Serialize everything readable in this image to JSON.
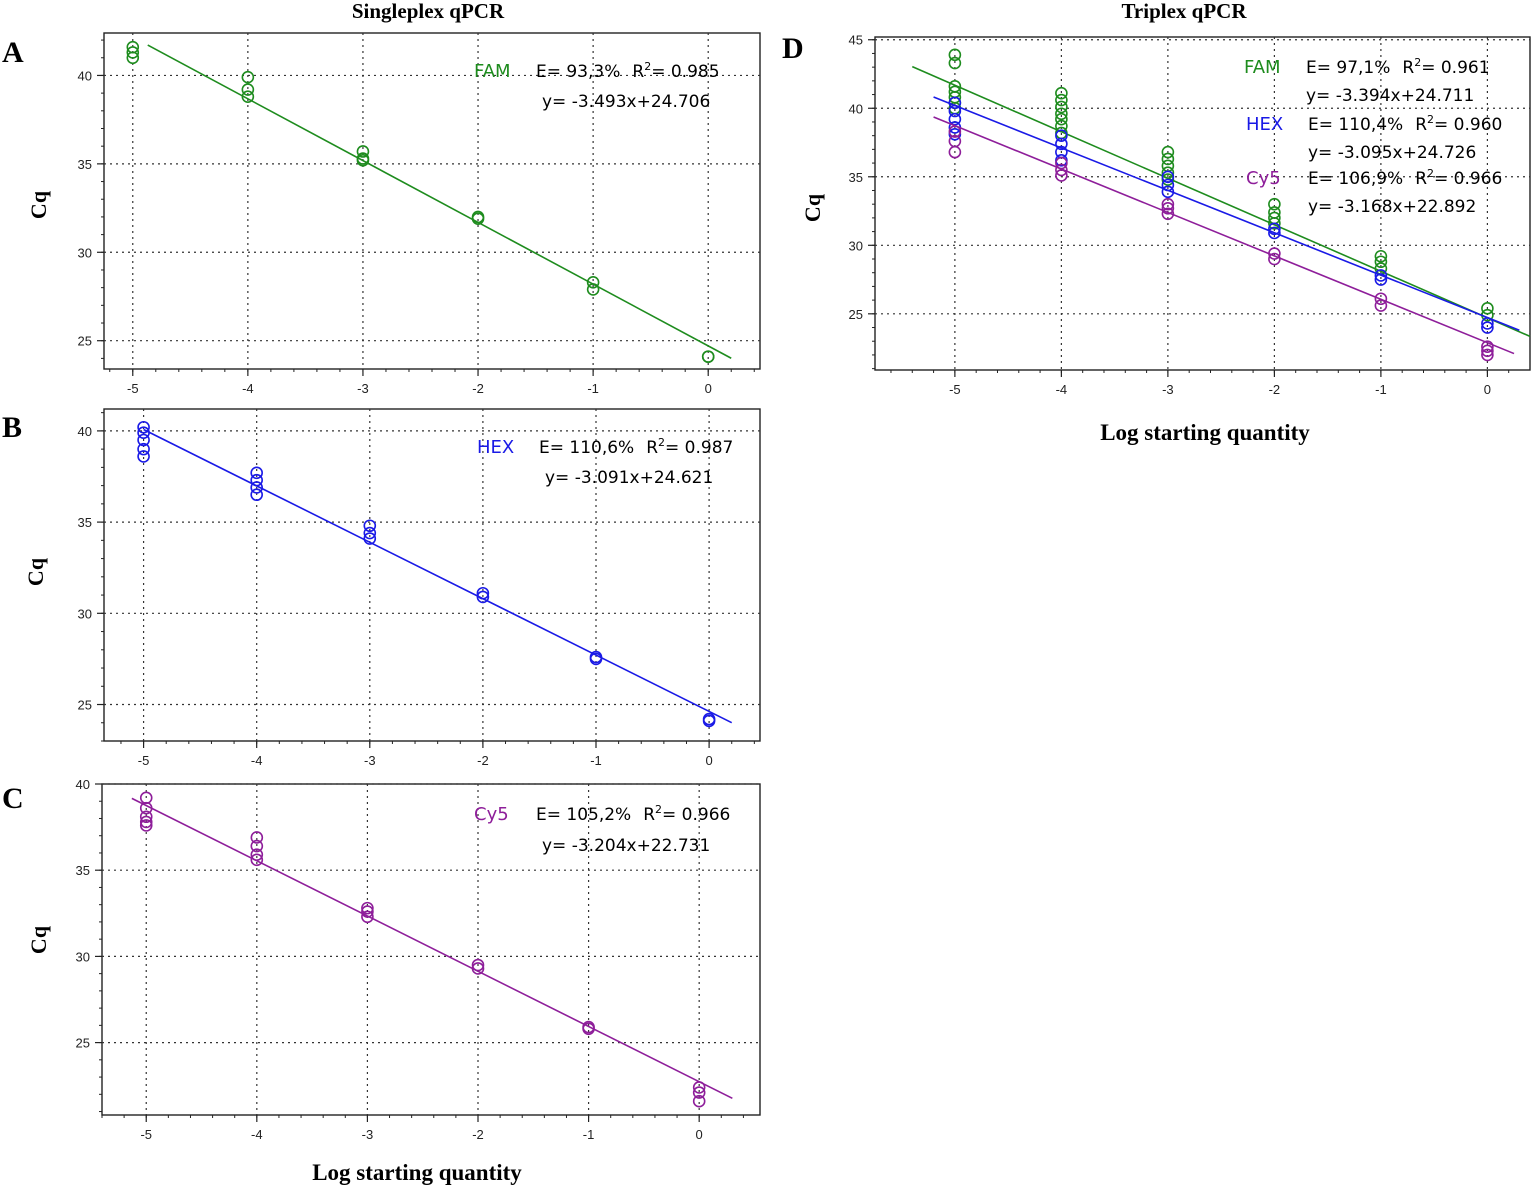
{
  "figure": {
    "title_left": "Singleplex qPCR",
    "title_right": "Triplex qPCR",
    "ylabel": "Cq",
    "xlabel": "Log starting quantity"
  },
  "colors": {
    "FAM": "#1e8c1e",
    "HEX": "#1a1ae6",
    "Cy5": "#8e1e9a"
  },
  "chart_data": [
    {
      "panel": "A",
      "type": "scatter",
      "title": "",
      "xlabel": "",
      "ylabel": "Cq",
      "xlim": [
        -5.25,
        0.45
      ],
      "ylim": [
        23.4,
        42.4
      ],
      "xticks": [
        -5,
        -4,
        -3,
        -2,
        -1,
        0
      ],
      "yticks": [
        25,
        30,
        35,
        40
      ],
      "xticklabels": [
        "-5",
        "-4",
        "-3",
        "-2",
        "-1",
        "0"
      ],
      "yticklabels": [
        "25",
        "30",
        "35",
        "40"
      ],
      "series": [
        {
          "name": "FAM",
          "efficiency": "E= 93,3%",
          "r2_prefix": "R",
          "r2_sup": "2",
          "r2_value": "= 0.985",
          "equation": "y= -3.493x+24.706",
          "slope": -3.493,
          "intercept": 24.706,
          "line_x": [
            -4.87,
            0.2
          ],
          "points": [
            [
              -5,
              41.6
            ],
            [
              -5,
              41.3
            ],
            [
              -5,
              41.0
            ],
            [
              -4,
              39.9
            ],
            [
              -4,
              39.2
            ],
            [
              -4,
              38.8
            ],
            [
              -3,
              35.7
            ],
            [
              -3,
              35.3
            ],
            [
              -3,
              35.2
            ],
            [
              -2,
              32.0
            ],
            [
              -2,
              31.9
            ],
            [
              -1,
              28.3
            ],
            [
              -1,
              27.9
            ],
            [
              0,
              24.1
            ],
            [
              0,
              24.1
            ]
          ]
        }
      ]
    },
    {
      "panel": "B",
      "type": "scatter",
      "title": "",
      "xlabel": "",
      "ylabel": "Cq",
      "xlim": [
        -5.35,
        0.45
      ],
      "ylim": [
        23.0,
        41.2
      ],
      "xticks": [
        -5,
        -4,
        -3,
        -2,
        -1,
        0
      ],
      "yticks": [
        25,
        30,
        35,
        40
      ],
      "xticklabels": [
        "-5",
        "-4",
        "-3",
        "-2",
        "-1",
        "0"
      ],
      "yticklabels": [
        "25",
        "30",
        "35",
        "40"
      ],
      "series": [
        {
          "name": "HEX",
          "efficiency": "E= 110,6%",
          "r2_prefix": "R",
          "r2_sup": "2",
          "r2_value": "= 0.987",
          "equation": "y= -3.091x+24.621",
          "slope": -3.091,
          "intercept": 24.621,
          "line_x": [
            -5.0,
            0.2
          ],
          "points": [
            [
              -5,
              40.2
            ],
            [
              -5,
              39.9
            ],
            [
              -5,
              39.5
            ],
            [
              -5,
              39.0
            ],
            [
              -5,
              38.6
            ],
            [
              -4,
              37.7
            ],
            [
              -4,
              37.3
            ],
            [
              -4,
              36.9
            ],
            [
              -4,
              36.5
            ],
            [
              -3,
              34.8
            ],
            [
              -3,
              34.4
            ],
            [
              -3,
              34.1
            ],
            [
              -2,
              31.1
            ],
            [
              -2,
              30.9
            ],
            [
              -1,
              27.6
            ],
            [
              -1,
              27.5
            ],
            [
              0,
              24.2
            ],
            [
              0,
              24.1
            ]
          ]
        }
      ]
    },
    {
      "panel": "C",
      "type": "scatter",
      "title": "",
      "xlabel": "Log starting quantity",
      "ylabel": "Cq",
      "xlim": [
        -5.4,
        0.55
      ],
      "ylim": [
        20.8,
        40.0
      ],
      "xticks": [
        -5,
        -4,
        -3,
        -2,
        -1,
        0
      ],
      "yticks": [
        25,
        30,
        35,
        40
      ],
      "xticklabels": [
        "-5",
        "-4",
        "-3",
        "-2",
        "-1",
        "0"
      ],
      "yticklabels": [
        "25",
        "30",
        "35",
        "40"
      ],
      "series": [
        {
          "name": "Cy5",
          "efficiency": "E= 105,2%",
          "r2_prefix": "R",
          "r2_sup": "2",
          "r2_value": "= 0.966",
          "equation": "y= -3.204x+22.731",
          "slope": -3.204,
          "intercept": 22.731,
          "line_x": [
            -5.13,
            0.3
          ],
          "points": [
            [
              -5,
              39.2
            ],
            [
              -5,
              38.6
            ],
            [
              -5,
              38.1
            ],
            [
              -5,
              37.8
            ],
            [
              -5,
              37.6
            ],
            [
              -4,
              36.9
            ],
            [
              -4,
              36.4
            ],
            [
              -4,
              35.9
            ],
            [
              -4,
              35.6
            ],
            [
              -3,
              32.8
            ],
            [
              -3,
              32.6
            ],
            [
              -3,
              32.3
            ],
            [
              -2,
              29.5
            ],
            [
              -2,
              29.3
            ],
            [
              -1,
              25.9
            ],
            [
              -1,
              25.8
            ],
            [
              0,
              22.4
            ],
            [
              0,
              22.1
            ],
            [
              0,
              21.6
            ]
          ]
        }
      ]
    },
    {
      "panel": "D",
      "type": "scatter",
      "title": "",
      "xlabel": "Log starting quantity",
      "ylabel": "Cq",
      "xlim": [
        -5.75,
        0.4
      ],
      "ylim": [
        20.9,
        45.2
      ],
      "xticks": [
        -5,
        -4,
        -3,
        -2,
        -1,
        0
      ],
      "yticks": [
        25,
        30,
        35,
        40,
        45
      ],
      "xticklabels": [
        "-5",
        "-4",
        "-3",
        "-2",
        "-1",
        "0"
      ],
      "yticklabels": [
        "25",
        "30",
        "35",
        "40",
        "45"
      ],
      "series": [
        {
          "name": "FAM",
          "efficiency": "E= 97,1%",
          "r2_prefix": "R",
          "r2_sup": "2",
          "r2_value": "= 0.961",
          "equation": "y= -3.394x+24.711",
          "slope": -3.394,
          "intercept": 24.711,
          "line_x": [
            -5.4,
            0.4
          ],
          "points": [
            [
              -5,
              43.9
            ],
            [
              -5,
              43.3
            ],
            [
              -5,
              41.6
            ],
            [
              -5,
              41.2
            ],
            [
              -5,
              40.8
            ],
            [
              -5,
              40.4
            ],
            [
              -5,
              40.0
            ],
            [
              -4,
              41.1
            ],
            [
              -4,
              40.6
            ],
            [
              -4,
              40.1
            ],
            [
              -4,
              39.6
            ],
            [
              -4,
              39.2
            ],
            [
              -4,
              38.7
            ],
            [
              -4,
              38.2
            ],
            [
              -3,
              36.8
            ],
            [
              -3,
              36.3
            ],
            [
              -3,
              35.8
            ],
            [
              -3,
              35.3
            ],
            [
              -3,
              34.8
            ],
            [
              -2,
              33.0
            ],
            [
              -2,
              32.4
            ],
            [
              -2,
              32.0
            ],
            [
              -2,
              31.6
            ],
            [
              -1,
              29.2
            ],
            [
              -1,
              28.8
            ],
            [
              -1,
              28.3
            ],
            [
              0,
              25.4
            ],
            [
              0,
              24.9
            ]
          ]
        },
        {
          "name": "HEX",
          "efficiency": "E= 110,4%",
          "r2_prefix": "R",
          "r2_sup": "2",
          "r2_value": "= 0.960",
          "equation": "y= -3.095x+24.726",
          "slope": -3.095,
          "intercept": 24.726,
          "line_x": [
            -5.2,
            0.3
          ],
          "points": [
            [
              -5,
              40.4
            ],
            [
              -5,
              39.8
            ],
            [
              -5,
              39.2
            ],
            [
              -5,
              38.6
            ],
            [
              -5,
              38.1
            ],
            [
              -4,
              38.0
            ],
            [
              -4,
              37.4
            ],
            [
              -4,
              36.8
            ],
            [
              -4,
              36.2
            ],
            [
              -3,
              35.0
            ],
            [
              -3,
              34.4
            ],
            [
              -3,
              33.9
            ],
            [
              -2,
              31.2
            ],
            [
              -2,
              30.9
            ],
            [
              -1,
              27.8
            ],
            [
              -1,
              27.5
            ],
            [
              0,
              24.3
            ],
            [
              0,
              24.0
            ]
          ]
        },
        {
          "name": "Cy5",
          "efficiency": "E= 106,9%",
          "r2_prefix": "R",
          "r2_sup": "2",
          "r2_value": "= 0.966",
          "equation": "y= -3.168x+22.892",
          "slope": -3.168,
          "intercept": 22.892,
          "line_x": [
            -5.2,
            0.25
          ],
          "points": [
            [
              -5,
              38.3
            ],
            [
              -5,
              37.6
            ],
            [
              -5,
              36.8
            ],
            [
              -4,
              36.0
            ],
            [
              -4,
              35.5
            ],
            [
              -4,
              35.1
            ],
            [
              -3,
              33.0
            ],
            [
              -3,
              32.7
            ],
            [
              -3,
              32.3
            ],
            [
              -2,
              29.4
            ],
            [
              -2,
              29.0
            ],
            [
              -1,
              26.1
            ],
            [
              -1,
              25.6
            ],
            [
              0,
              22.6
            ],
            [
              0,
              22.3
            ],
            [
              0,
              22.0
            ]
          ]
        }
      ]
    }
  ]
}
